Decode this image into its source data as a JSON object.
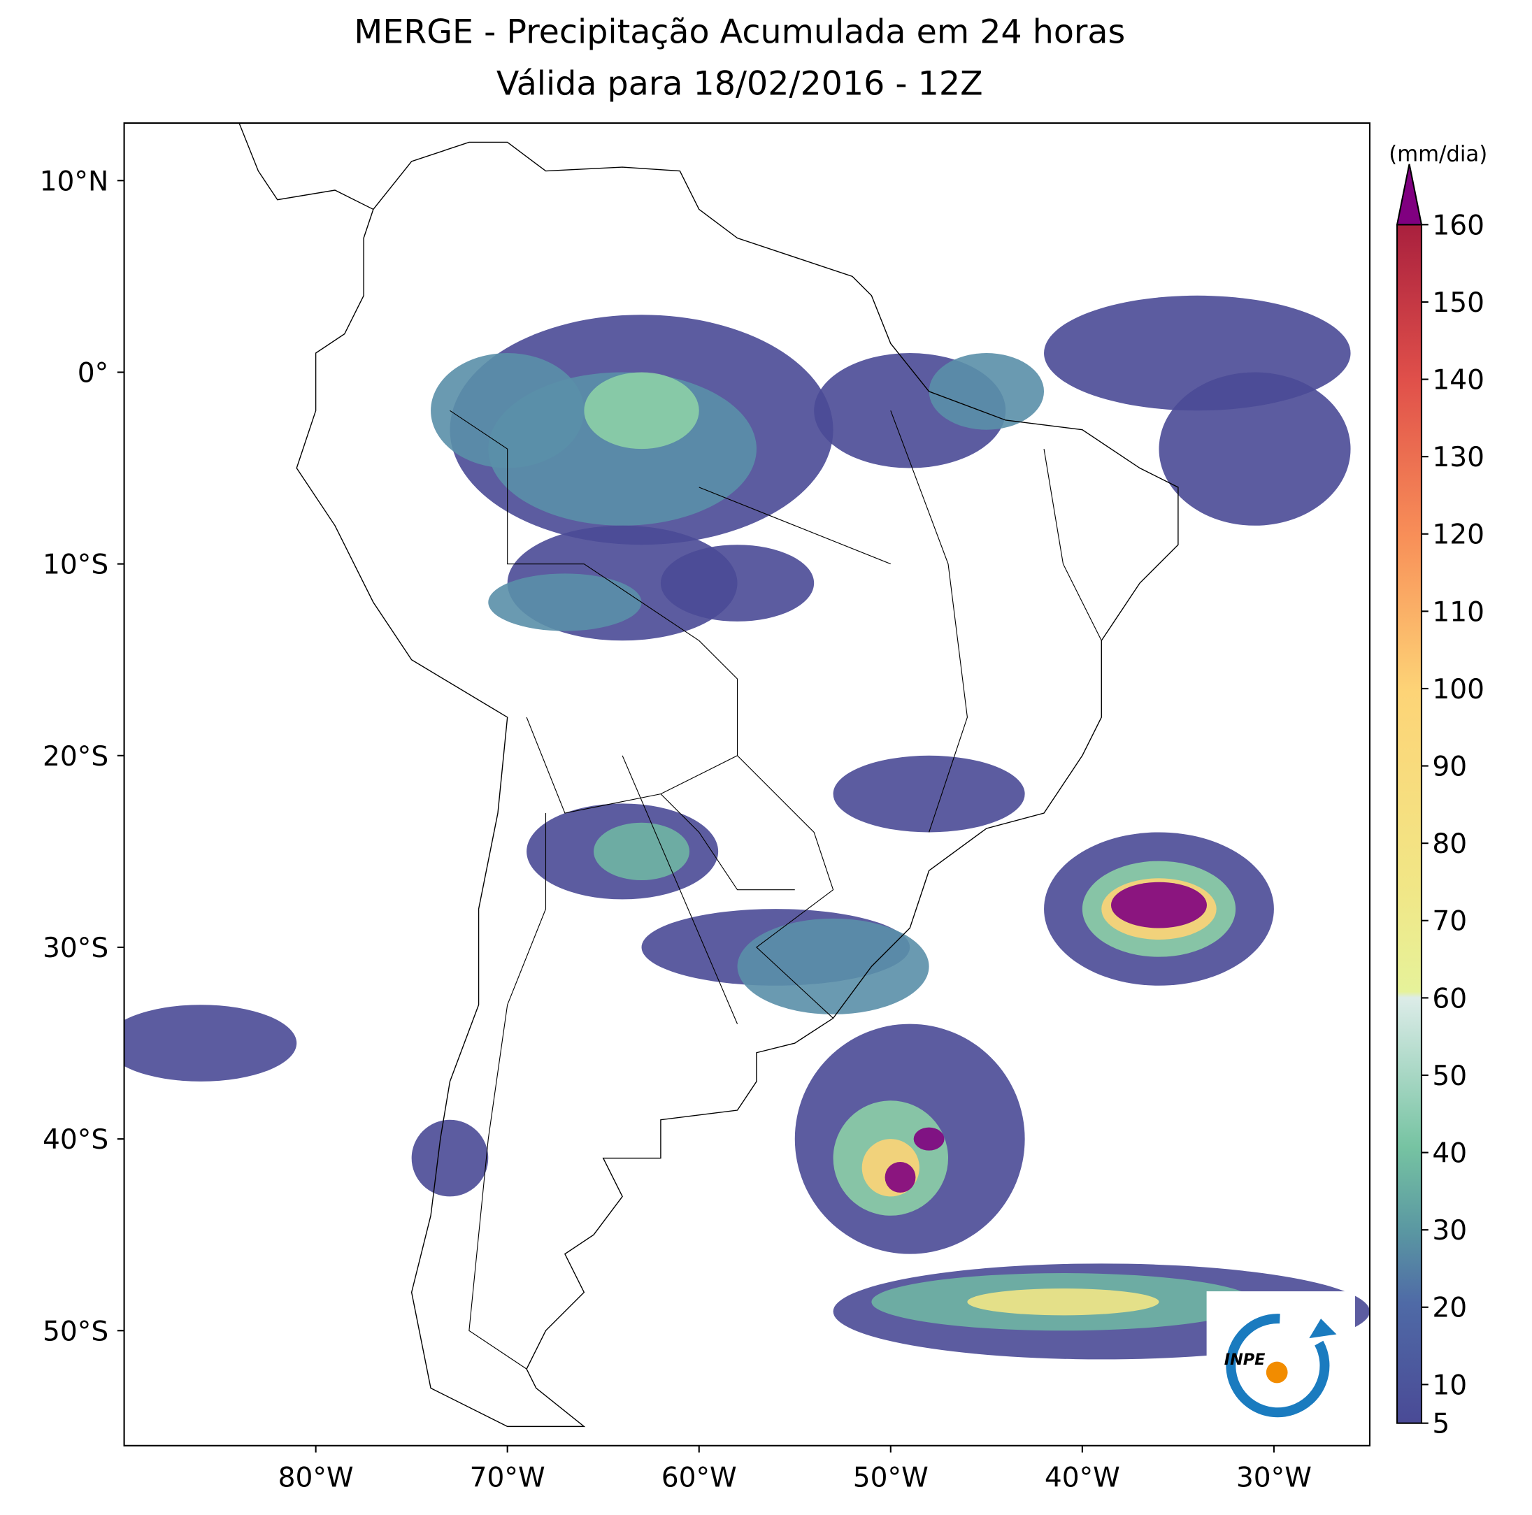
{
  "title": "MERGE - Precipitação Acumulada em 24 horas",
  "subtitle": "Válida para 18/02/2016 - 12Z",
  "map": {
    "lonlim": [
      -90,
      -25
    ],
    "latlim": [
      -56,
      13
    ],
    "lon_ticks": [
      {
        "value": -80,
        "label": "80°W"
      },
      {
        "value": -70,
        "label": "70°W"
      },
      {
        "value": -60,
        "label": "60°W"
      },
      {
        "value": -50,
        "label": "50°W"
      },
      {
        "value": -40,
        "label": "40°W"
      },
      {
        "value": -30,
        "label": "30°W"
      }
    ],
    "lat_ticks": [
      {
        "value": 10,
        "label": "10°N"
      },
      {
        "value": 0,
        "label": "0°"
      },
      {
        "value": -10,
        "label": "10°S"
      },
      {
        "value": -20,
        "label": "20°S"
      },
      {
        "value": -30,
        "label": "30°S"
      },
      {
        "value": -40,
        "label": "40°S"
      },
      {
        "value": -50,
        "label": "50°S"
      }
    ]
  },
  "colorbar": {
    "unit": "(mm/dia)",
    "lim": [
      5,
      160
    ],
    "ticks": [
      5,
      10,
      20,
      30,
      40,
      50,
      60,
      70,
      80,
      90,
      100,
      110,
      120,
      130,
      140,
      150,
      160
    ]
  },
  "logo": "INPE"
}
